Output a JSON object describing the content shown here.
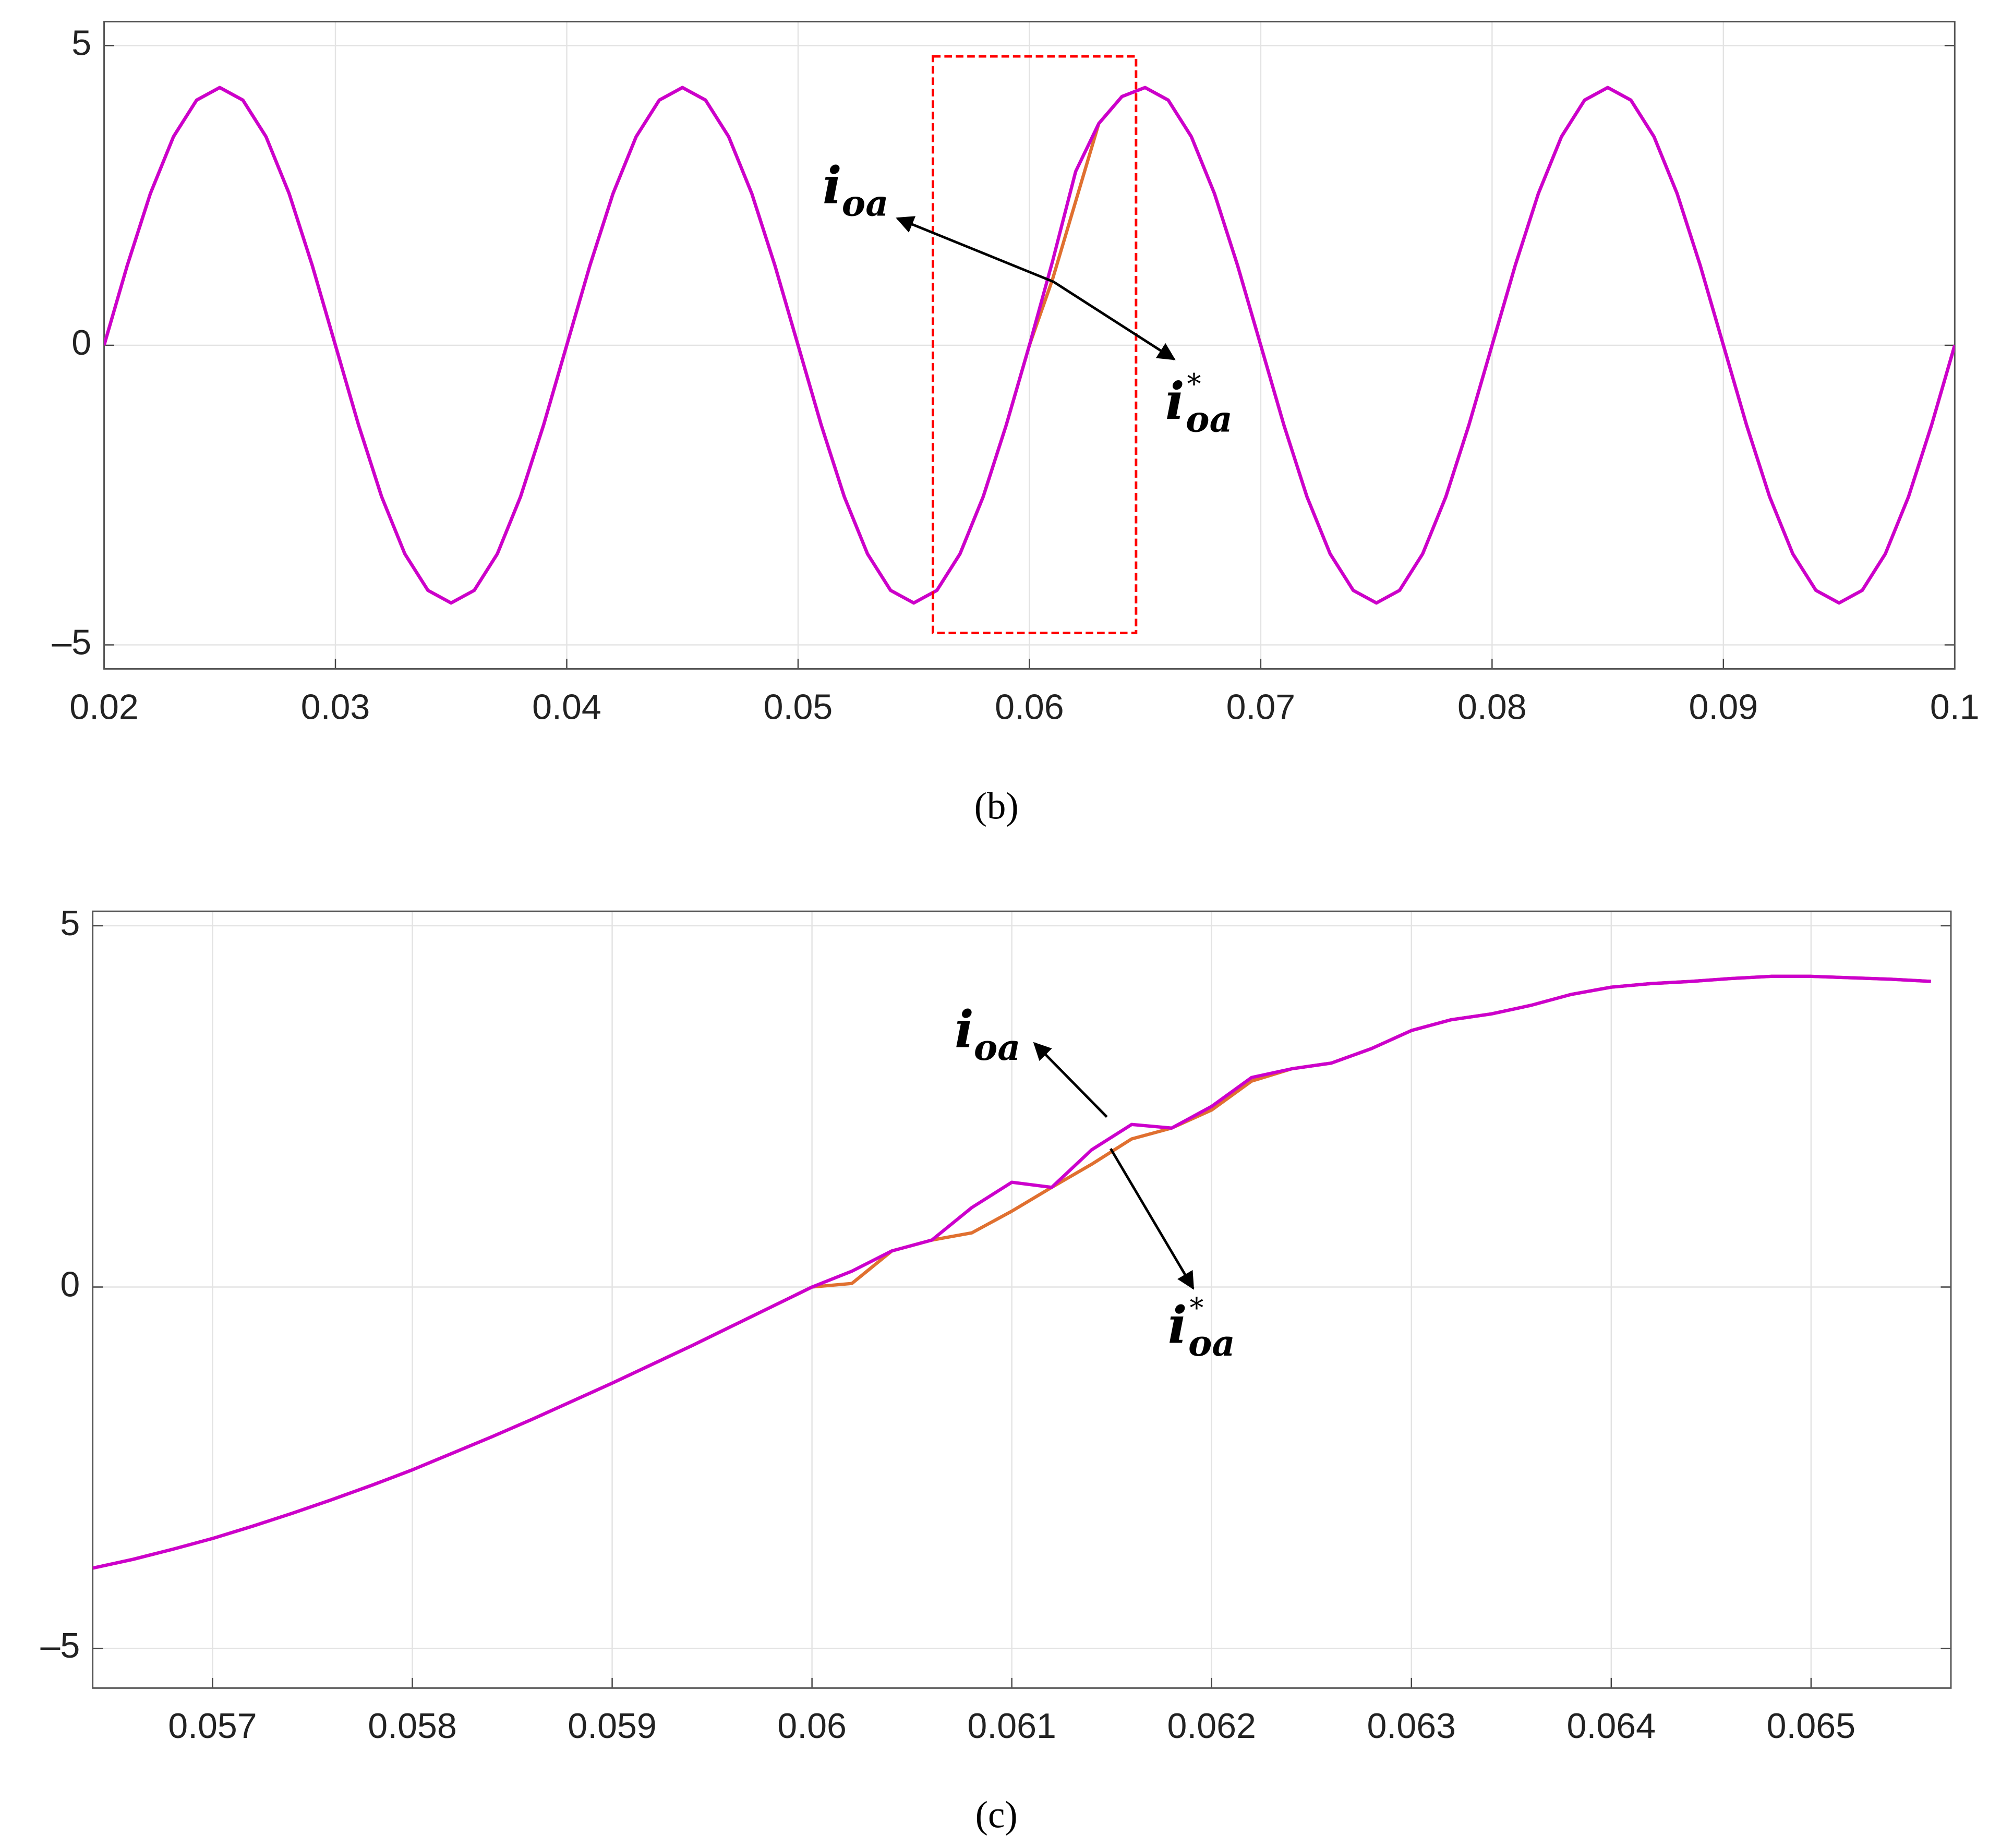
{
  "chart_data": [
    {
      "type": "line",
      "caption": "(b)",
      "x": [
        0.02,
        0.021,
        0.022,
        0.023,
        0.024,
        0.025,
        0.026,
        0.027,
        0.028,
        0.029,
        0.03,
        0.031,
        0.032,
        0.033,
        0.034,
        0.035,
        0.036,
        0.037,
        0.038,
        0.039,
        0.04,
        0.041,
        0.042,
        0.043,
        0.044,
        0.045,
        0.046,
        0.047,
        0.048,
        0.049,
        0.05,
        0.051,
        0.052,
        0.053,
        0.054,
        0.055,
        0.056,
        0.057,
        0.058,
        0.059,
        0.06,
        0.061,
        0.062,
        0.063,
        0.064,
        0.065,
        0.066,
        0.067,
        0.068,
        0.069,
        0.07,
        0.071,
        0.072,
        0.073,
        0.074,
        0.075,
        0.076,
        0.077,
        0.078,
        0.079,
        0.08,
        0.081,
        0.082,
        0.083,
        0.084,
        0.085,
        0.086,
        0.087,
        0.088,
        0.089,
        0.09,
        0.091,
        0.092,
        0.093,
        0.094,
        0.095,
        0.096,
        0.097,
        0.098,
        0.099,
        0.1
      ],
      "series": [
        {
          "color": "#e07030",
          "values": [
            0,
            1.33,
            2.53,
            3.48,
            4.09,
            4.3,
            4.09,
            3.48,
            2.53,
            1.33,
            0,
            -1.33,
            -2.53,
            -3.48,
            -4.09,
            -4.3,
            -4.09,
            -3.48,
            -2.53,
            -1.33,
            0,
            1.33,
            2.53,
            3.48,
            4.09,
            4.3,
            4.09,
            3.48,
            2.53,
            1.33,
            0,
            -1.33,
            -2.53,
            -3.48,
            -4.09,
            -4.3,
            -4.09,
            -3.48,
            -2.53,
            -1.33,
            0,
            1.1,
            2.4,
            3.7,
            4.15,
            4.3,
            4.09,
            3.48,
            2.53,
            1.33,
            0,
            -1.33,
            -2.53,
            -3.48,
            -4.09,
            -4.3,
            -4.09,
            -3.48,
            -2.53,
            -1.33,
            0,
            1.33,
            2.53,
            3.48,
            4.09,
            4.3,
            4.09,
            3.48,
            2.53,
            1.33,
            0,
            -1.33,
            -2.53,
            -3.48,
            -4.09,
            -4.3,
            -4.09,
            -3.48,
            -2.53,
            -1.33,
            0
          ]
        },
        {
          "color": "#cc00cc",
          "values": [
            0,
            1.33,
            2.53,
            3.48,
            4.09,
            4.3,
            4.09,
            3.48,
            2.53,
            1.33,
            0,
            -1.33,
            -2.53,
            -3.48,
            -4.09,
            -4.3,
            -4.09,
            -3.48,
            -2.53,
            -1.33,
            0,
            1.33,
            2.53,
            3.48,
            4.09,
            4.3,
            4.09,
            3.48,
            2.53,
            1.33,
            0,
            -1.33,
            -2.53,
            -3.48,
            -4.09,
            -4.3,
            -4.09,
            -3.48,
            -2.53,
            -1.33,
            0,
            1.4,
            2.9,
            3.7,
            4.15,
            4.3,
            4.09,
            3.48,
            2.53,
            1.33,
            0,
            -1.33,
            -2.53,
            -3.48,
            -4.09,
            -4.3,
            -4.09,
            -3.48,
            -2.53,
            -1.33,
            0,
            1.33,
            2.53,
            3.48,
            4.09,
            4.3,
            4.09,
            3.48,
            2.53,
            1.33,
            0,
            -1.33,
            -2.53,
            -3.48,
            -4.09,
            -4.3,
            -4.09,
            -3.48,
            -2.53,
            -1.33,
            0
          ]
        }
      ],
      "xlim": [
        0.02,
        0.1
      ],
      "ylim": [
        -5.4,
        5.4
      ],
      "xticks": [
        0.02,
        0.03,
        0.04,
        0.05,
        0.06,
        0.07,
        0.08,
        0.09,
        0.1
      ],
      "yticks": [
        {
          "value": -5,
          "label": "–5"
        },
        0,
        5
      ],
      "grid": true,
      "highlight": {
        "x": [
          0.05583,
          0.06461
        ],
        "y": [
          -4.8,
          4.82
        ],
        "color": "#ff0000"
      },
      "annotations": [
        {
          "text": "i",
          "subscript": "oa"
        },
        {
          "text": "i",
          "superscript": "*",
          "subscript": "oa"
        }
      ]
    },
    {
      "type": "line",
      "caption": "(c)",
      "x": [
        0.0564,
        0.0566,
        0.0568,
        0.057,
        0.0572,
        0.0574,
        0.0576,
        0.0578,
        0.058,
        0.0582,
        0.0584,
        0.0586,
        0.0588,
        0.059,
        0.0592,
        0.0594,
        0.0596,
        0.0598,
        0.06,
        0.0602,
        0.0604,
        0.0606,
        0.0608,
        0.061,
        0.0612,
        0.0614,
        0.0616,
        0.0618,
        0.062,
        0.0622,
        0.0624,
        0.0626,
        0.0628,
        0.063,
        0.0632,
        0.0634,
        0.0636,
        0.0638,
        0.064,
        0.0642,
        0.0644,
        0.0646,
        0.0648,
        0.065,
        0.0652,
        0.0654,
        0.0656
      ],
      "series": [
        {
          "color": "#e07030",
          "values": [
            -3.89,
            -3.77,
            -3.63,
            -3.48,
            -3.31,
            -3.13,
            -2.94,
            -2.74,
            -2.53,
            -2.3,
            -2.07,
            -1.83,
            -1.58,
            -1.33,
            -1.07,
            -0.81,
            -0.54,
            -0.27,
            0,
            0.05,
            0.5,
            0.65,
            0.75,
            1.05,
            1.38,
            1.7,
            2.05,
            2.2,
            2.45,
            2.85,
            3.02,
            3.1,
            3.3,
            3.55,
            3.7,
            3.78,
            3.9,
            4.05,
            4.15,
            4.2,
            4.23,
            4.27,
            4.3,
            4.3,
            4.28,
            4.26,
            4.23
          ]
        },
        {
          "color": "#cc00cc",
          "values": [
            -3.89,
            -3.77,
            -3.63,
            -3.48,
            -3.31,
            -3.13,
            -2.94,
            -2.74,
            -2.53,
            -2.3,
            -2.07,
            -1.83,
            -1.58,
            -1.33,
            -1.07,
            -0.81,
            -0.54,
            -0.27,
            0,
            0.22,
            0.5,
            0.65,
            1.1,
            1.45,
            1.38,
            1.9,
            2.25,
            2.2,
            2.5,
            2.9,
            3.02,
            3.1,
            3.3,
            3.55,
            3.7,
            3.78,
            3.9,
            4.05,
            4.15,
            4.2,
            4.23,
            4.27,
            4.3,
            4.3,
            4.28,
            4.26,
            4.23
          ]
        }
      ],
      "xlim": [
        0.0564,
        0.0657
      ],
      "ylim": [
        -5.55,
        5.2
      ],
      "xticks": [
        0.057,
        0.058,
        0.059,
        0.06,
        0.061,
        0.062,
        0.063,
        0.064,
        0.065
      ],
      "yticks": [
        {
          "value": -5,
          "label": "–5"
        },
        0,
        5
      ],
      "grid": true,
      "annotations": [
        {
          "text": "i",
          "subscript": "oa"
        },
        {
          "text": "i",
          "superscript": "*",
          "subscript": "oa"
        }
      ]
    }
  ]
}
